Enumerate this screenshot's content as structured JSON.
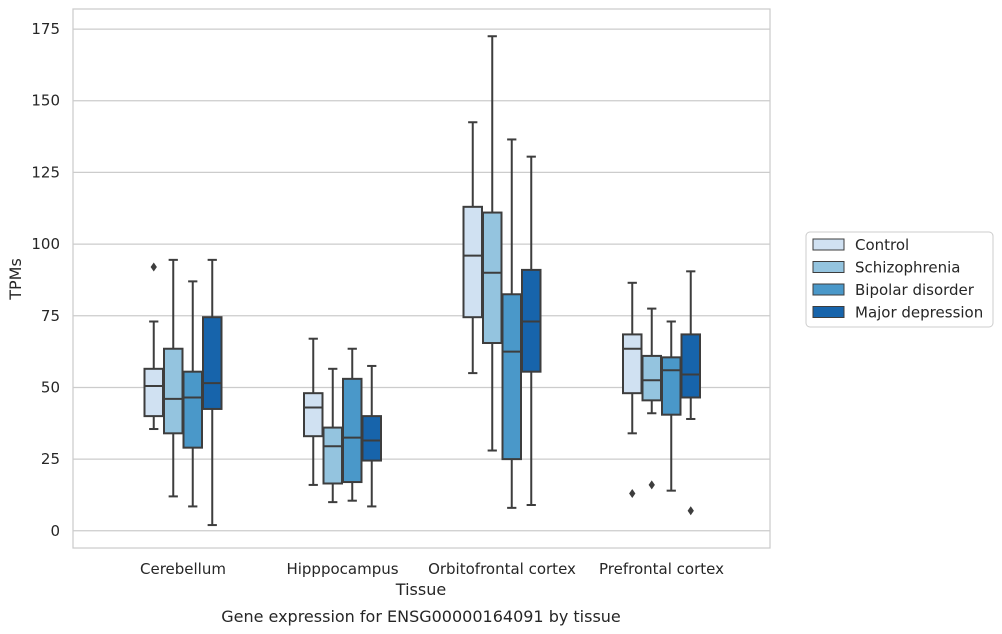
{
  "chart_data": {
    "type": "box",
    "xlabel": "Tissue",
    "ylabel": "TPMs",
    "caption": "Gene expression for ENSG00000164091 by tissue",
    "ylim": [
      -6,
      182
    ],
    "yticks": [
      0,
      25,
      50,
      75,
      100,
      125,
      150,
      175
    ],
    "categories": [
      "Cerebellum",
      "Hipppocampus",
      "Orbitofrontal cortex",
      "Prefrontal cortex"
    ],
    "grid": true,
    "legend_position": "right",
    "series": [
      {
        "name": "Control",
        "color": "#d0e1f2",
        "boxes": [
          {
            "whislo": 35.5,
            "q1": 40,
            "med": 50.5,
            "q3": 56.5,
            "whishi": 73,
            "fliers": [
              92
            ]
          },
          {
            "whislo": 16,
            "q1": 33,
            "med": 43,
            "q3": 48,
            "whishi": 67,
            "fliers": []
          },
          {
            "whislo": 55,
            "q1": 74.5,
            "med": 96,
            "q3": 113,
            "whishi": 142.5,
            "fliers": []
          },
          {
            "whislo": 34,
            "q1": 48,
            "med": 63.5,
            "q3": 68.5,
            "whishi": 86.5,
            "fliers": [
              13
            ]
          }
        ]
      },
      {
        "name": "Schizophrenia",
        "color": "#94c4df",
        "boxes": [
          {
            "whislo": 12,
            "q1": 34,
            "med": 46,
            "q3": 63.5,
            "whishi": 94.5,
            "fliers": []
          },
          {
            "whislo": 10,
            "q1": 16.5,
            "med": 29.5,
            "q3": 36,
            "whishi": 56.5,
            "fliers": []
          },
          {
            "whislo": 28,
            "q1": 65.5,
            "med": 90,
            "q3": 111,
            "whishi": 172.5,
            "fliers": []
          },
          {
            "whislo": 41,
            "q1": 45.5,
            "med": 52.5,
            "q3": 61,
            "whishi": 77.5,
            "fliers": [
              16
            ]
          }
        ]
      },
      {
        "name": "Bipolar disorder",
        "color": "#4a98c9",
        "boxes": [
          {
            "whislo": 8.5,
            "q1": 29,
            "med": 46.5,
            "q3": 55.5,
            "whishi": 87,
            "fliers": []
          },
          {
            "whislo": 10.5,
            "q1": 17,
            "med": 32.5,
            "q3": 53,
            "whishi": 63.5,
            "fliers": []
          },
          {
            "whislo": 8,
            "q1": 25,
            "med": 62.5,
            "q3": 82.5,
            "whishi": 136.5,
            "fliers": []
          },
          {
            "whislo": 14,
            "q1": 40.5,
            "med": 56,
            "q3": 60.5,
            "whishi": 73,
            "fliers": []
          }
        ]
      },
      {
        "name": "Major depression",
        "color": "#1764ab",
        "boxes": [
          {
            "whislo": 2,
            "q1": 42.5,
            "med": 51.5,
            "q3": 74.5,
            "whishi": 94.5,
            "fliers": []
          },
          {
            "whislo": 8.5,
            "q1": 24.5,
            "med": 31.5,
            "q3": 40,
            "whishi": 57.5,
            "fliers": []
          },
          {
            "whislo": 9,
            "q1": 55.5,
            "med": 73,
            "q3": 91,
            "whishi": 130.5,
            "fliers": []
          },
          {
            "whislo": 39,
            "q1": 46.5,
            "med": 54.5,
            "q3": 68.5,
            "whishi": 90.5,
            "fliers": [
              7
            ]
          }
        ]
      }
    ]
  }
}
